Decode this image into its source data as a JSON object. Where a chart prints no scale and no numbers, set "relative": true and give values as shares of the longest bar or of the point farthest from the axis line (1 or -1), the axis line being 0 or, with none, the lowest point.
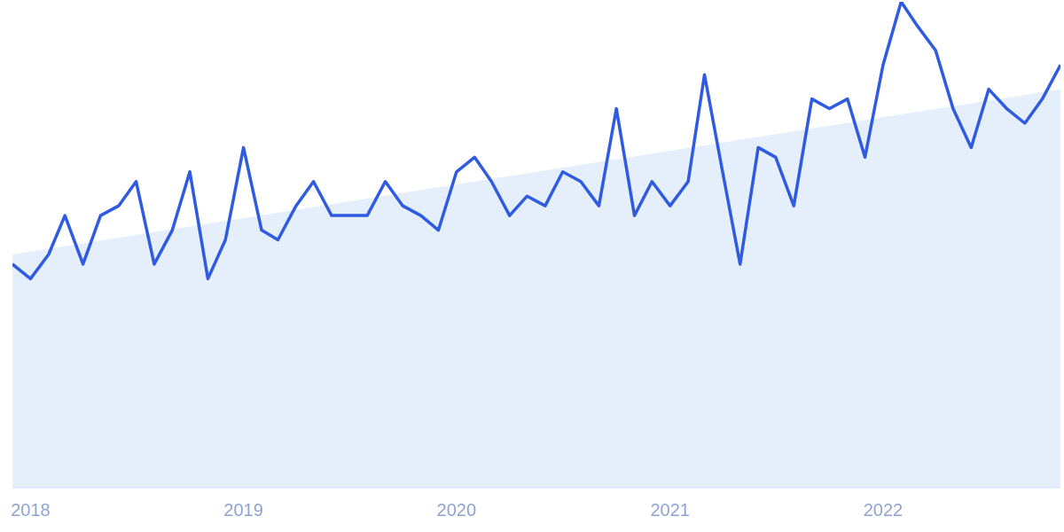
{
  "chart_data": {
    "type": "line",
    "relative": true,
    "x": [
      "2017-12",
      "2018-01",
      "2018-02",
      "2018-03",
      "2018-04",
      "2018-05",
      "2018-06",
      "2018-07",
      "2018-08",
      "2018-09",
      "2018-10",
      "2018-11",
      "2018-12",
      "2019-01",
      "2019-02",
      "2019-03",
      "2019-04",
      "2019-05",
      "2019-06",
      "2019-07",
      "2019-08",
      "2019-09",
      "2019-10",
      "2019-11",
      "2019-12",
      "2020-01",
      "2020-02",
      "2020-03",
      "2020-04",
      "2020-05",
      "2020-06",
      "2020-07",
      "2020-08",
      "2020-09",
      "2020-10",
      "2020-11",
      "2020-12",
      "2021-01",
      "2021-02",
      "2021-03",
      "2021-04",
      "2021-05",
      "2021-06",
      "2021-07",
      "2021-08",
      "2021-09",
      "2021-10",
      "2021-11",
      "2021-12",
      "2022-01",
      "2022-02",
      "2022-03",
      "2022-04",
      "2022-05",
      "2022-06",
      "2022-07",
      "2022-08",
      "2022-09",
      "2022-10",
      "2022-11"
    ],
    "series": [
      {
        "type": "area",
        "color": "#e2edfb",
        "x": [
          "2017-12",
          "2022-11"
        ],
        "values": [
          0.48,
          0.82
        ]
      },
      {
        "color": "#2f5be0",
        "values": [
          0.46,
          0.43,
          0.48,
          0.56,
          0.46,
          0.56,
          0.58,
          0.63,
          0.46,
          0.53,
          0.65,
          0.43,
          0.51,
          0.7,
          0.53,
          0.51,
          0.58,
          0.63,
          0.56,
          0.56,
          0.56,
          0.63,
          0.58,
          0.56,
          0.53,
          0.65,
          0.68,
          0.63,
          0.56,
          0.6,
          0.58,
          0.65,
          0.63,
          0.58,
          0.78,
          0.56,
          0.63,
          0.58,
          0.63,
          0.85,
          0.65,
          0.46,
          0.7,
          0.68,
          0.58,
          0.8,
          0.78,
          0.8,
          0.68,
          0.87,
          1.0,
          0.95,
          0.9,
          0.78,
          0.7,
          0.82,
          0.78,
          0.75,
          0.8,
          0.87
        ]
      }
    ],
    "xlim": [
      "2017-12",
      "2022-11"
    ],
    "xticks": [
      {
        "value": "2018-01",
        "label": "2018"
      },
      {
        "value": "2019-01",
        "label": "2019"
      },
      {
        "value": "2020-01",
        "label": "2020"
      },
      {
        "value": "2021-01",
        "label": "2021"
      },
      {
        "value": "2022-01",
        "label": "2022"
      }
    ],
    "marker": "none",
    "line_style": "solid",
    "tick_labels": "x"
  }
}
